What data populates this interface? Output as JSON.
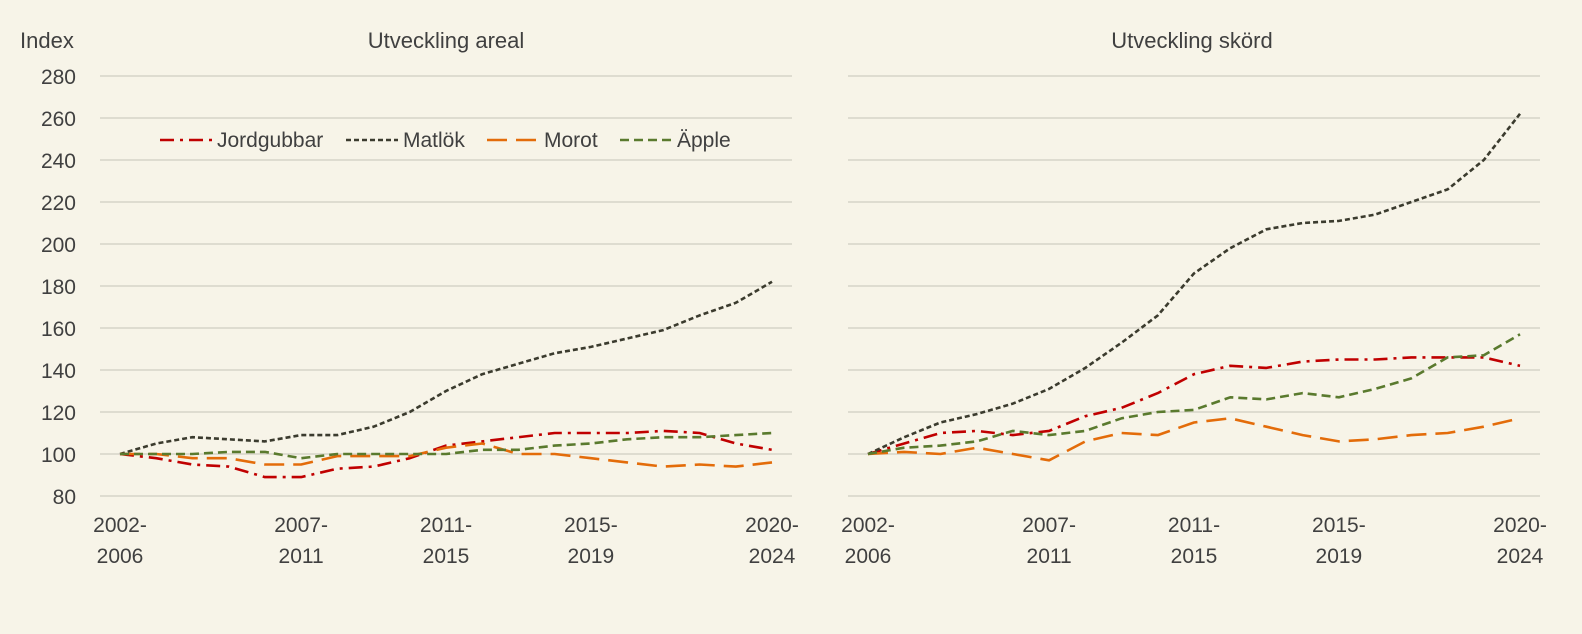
{
  "y_axis_label": "Index",
  "legend": [
    {
      "label": "Jordgubbar",
      "color": "#c00000",
      "dash": "dash-dot"
    },
    {
      "label": "Matlök",
      "color": "#3b3b2e",
      "dash": "short-dash"
    },
    {
      "label": "Morot",
      "color": "#e36c0a",
      "dash": "long-dash"
    },
    {
      "label": "Äpple",
      "color": "#5a7a2e",
      "dash": "dash"
    }
  ],
  "chart_data": [
    {
      "type": "line",
      "title": "Utveckling areal",
      "ylabel": "Index",
      "ylim": [
        80,
        280
      ],
      "yticks": [
        80,
        100,
        120,
        140,
        160,
        180,
        200,
        220,
        240,
        260,
        280
      ],
      "x": [
        2006,
        2007,
        2008,
        2009,
        2010,
        2011,
        2012,
        2013,
        2014,
        2015,
        2016,
        2017,
        2018,
        2019,
        2020,
        2021,
        2022,
        2023,
        2024
      ],
      "x_tick_labels": [
        {
          "x": 2006,
          "line1": "2002-",
          "line2": "2006"
        },
        {
          "x": 2011,
          "line1": "2007-",
          "line2": "2011"
        },
        {
          "x": 2015,
          "line1": "2011-",
          "line2": "2015"
        },
        {
          "x": 2019,
          "line1": "2015-",
          "line2": "2019"
        },
        {
          "x": 2024,
          "line1": "2020-",
          "line2": "2024"
        }
      ],
      "grid": true,
      "legend_position": "top-left",
      "series": [
        {
          "name": "Jordgubbar",
          "values": [
            100,
            98,
            95,
            94,
            89,
            89,
            93,
            94,
            98,
            104,
            106,
            108,
            110,
            110,
            110,
            111,
            110,
            105,
            102
          ]
        },
        {
          "name": "Matlök",
          "values": [
            100,
            105,
            108,
            107,
            106,
            109,
            109,
            113,
            120,
            130,
            138,
            143,
            148,
            151,
            155,
            159,
            166,
            172,
            182
          ]
        },
        {
          "name": "Morot",
          "values": [
            100,
            100,
            98,
            98,
            95,
            95,
            99,
            99,
            99,
            103,
            105,
            100,
            100,
            98,
            96,
            94,
            95,
            94,
            96
          ]
        },
        {
          "name": "Äpple",
          "values": [
            100,
            100,
            100,
            101,
            101,
            98,
            100,
            100,
            100,
            100,
            102,
            102,
            104,
            105,
            107,
            108,
            108,
            109,
            110
          ]
        }
      ]
    },
    {
      "type": "line",
      "title": "Utveckling skörd",
      "ylabel": "Index",
      "ylim": [
        80,
        280
      ],
      "yticks": [
        80,
        100,
        120,
        140,
        160,
        180,
        200,
        220,
        240,
        260,
        280
      ],
      "x": [
        2006,
        2007,
        2008,
        2009,
        2010,
        2011,
        2012,
        2013,
        2014,
        2015,
        2016,
        2017,
        2018,
        2019,
        2020,
        2021,
        2022,
        2023,
        2024
      ],
      "x_tick_labels": [
        {
          "x": 2006,
          "line1": "2002-",
          "line2": "2006"
        },
        {
          "x": 2011,
          "line1": "2007-",
          "line2": "2011"
        },
        {
          "x": 2015,
          "line1": "2011-",
          "line2": "2015"
        },
        {
          "x": 2019,
          "line1": "2015-",
          "line2": "2019"
        },
        {
          "x": 2024,
          "line1": "2020-",
          "line2": "2024"
        }
      ],
      "grid": true,
      "series": [
        {
          "name": "Jordgubbar",
          "values": [
            100,
            105,
            110,
            111,
            109,
            111,
            118,
            122,
            129,
            138,
            142,
            141,
            144,
            145,
            145,
            146,
            146,
            146,
            142
          ]
        },
        {
          "name": "Matlök",
          "values": [
            100,
            108,
            115,
            119,
            124,
            131,
            141,
            153,
            166,
            186,
            198,
            207,
            210,
            211,
            214,
            220,
            226,
            240,
            262
          ]
        },
        {
          "name": "Morot",
          "values": [
            100,
            101,
            100,
            103,
            100,
            97,
            106,
            110,
            109,
            115,
            117,
            113,
            109,
            106,
            107,
            109,
            110,
            113,
            117
          ]
        },
        {
          "name": "Äpple",
          "values": [
            100,
            103,
            104,
            106,
            111,
            109,
            111,
            117,
            120,
            121,
            127,
            126,
            129,
            127,
            131,
            136,
            146,
            147,
            157
          ]
        }
      ]
    }
  ]
}
